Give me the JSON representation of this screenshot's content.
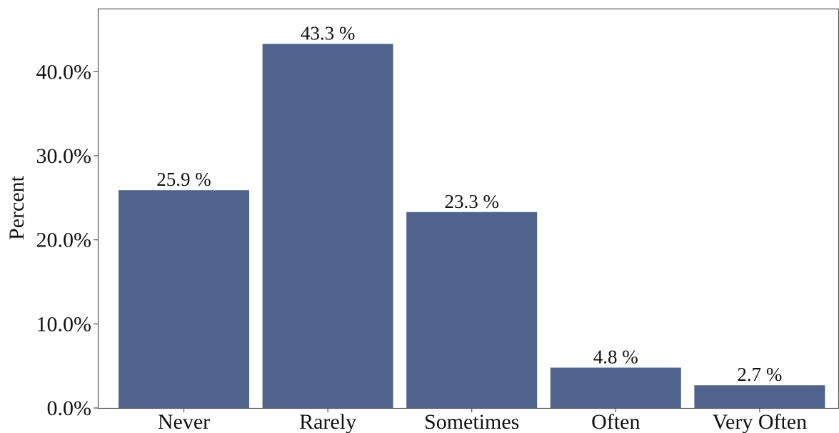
{
  "chart_data": {
    "type": "bar",
    "title": "",
    "xlabel": "",
    "ylabel": "Percent",
    "categories": [
      "Never",
      "Rarely",
      "Sometimes",
      "Often",
      "Very Often"
    ],
    "values": [
      25.9,
      43.3,
      23.3,
      4.8,
      2.7
    ],
    "value_labels": [
      "25.9 %",
      "43.3 %",
      "23.3 %",
      "4.8 %",
      "2.7 %"
    ],
    "ylim": [
      0,
      47.5
    ],
    "yticks": [
      0,
      10,
      20,
      30,
      40
    ],
    "ytick_labels": [
      "0.0%",
      "10.0%",
      "20.0%",
      "30.0%",
      "40.0%"
    ],
    "grid": false,
    "legend": "none",
    "colors": {
      "bar": "#4f638c",
      "axis": "#555555",
      "text": "#111111"
    }
  }
}
